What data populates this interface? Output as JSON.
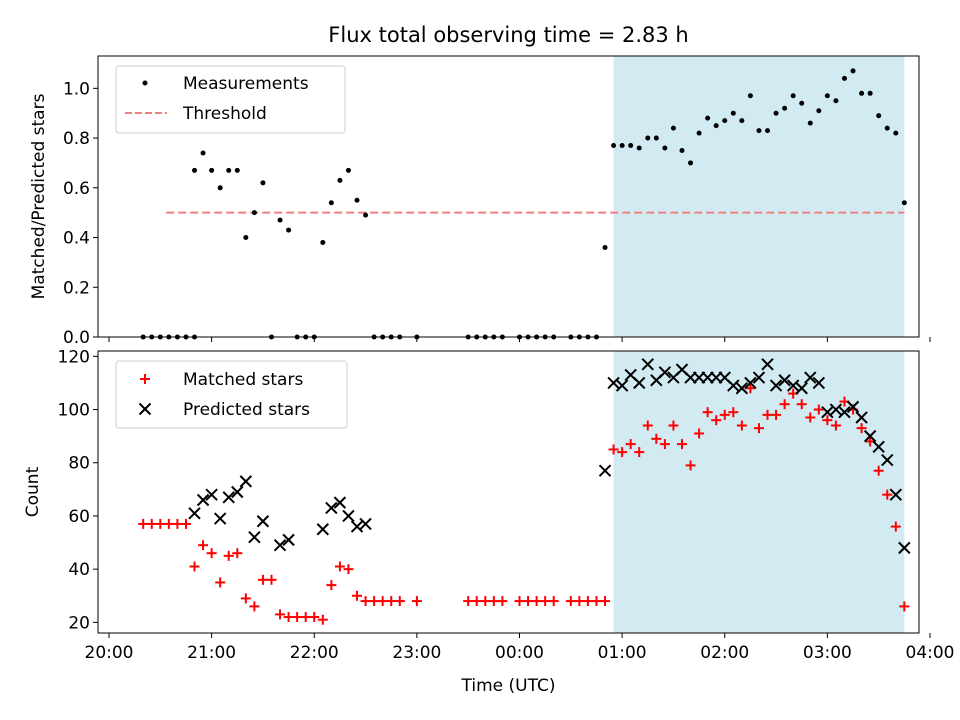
{
  "chart_data": [
    {
      "type": "scatter",
      "title": "Flux total observing time = 2.83 h",
      "xlabel": "",
      "ylabel": "Matched/Predicted stars",
      "xlim": [
        "20:00",
        "04:00"
      ],
      "ylim": [
        0,
        1.13
      ],
      "yticks": [
        0.0,
        0.2,
        0.4,
        0.6,
        0.8,
        1.0
      ],
      "ytick_labels": [
        "0.0",
        "0.2",
        "0.4",
        "0.6",
        "0.8",
        "1.0"
      ],
      "legend": {
        "placement": "upper left",
        "entries": [
          "Measurements",
          "Threshold"
        ]
      },
      "shaded_span": {
        "x": [
          "00:55",
          "03:45"
        ],
        "color": "#add8e6"
      },
      "threshold": {
        "name": "Threshold",
        "value": 0.5,
        "x": [
          "20:20",
          "03:45"
        ],
        "color": "#f08080",
        "style": "dashed"
      },
      "series": [
        {
          "name": "Measurements",
          "marker": "dot",
          "color": "#000000",
          "points": [
            [
              "20:20",
              0
            ],
            [
              "20:25",
              0
            ],
            [
              "20:30",
              0
            ],
            [
              "20:35",
              0
            ],
            [
              "20:40",
              0
            ],
            [
              "20:45",
              0
            ],
            [
              "20:50",
              0
            ],
            [
              "20:50",
              0.67
            ],
            [
              "20:55",
              0.74
            ],
            [
              "21:00",
              0.67
            ],
            [
              "21:05",
              0.6
            ],
            [
              "21:10",
              0.67
            ],
            [
              "21:15",
              0.67
            ],
            [
              "21:20",
              0.4
            ],
            [
              "21:25",
              0.5
            ],
            [
              "21:30",
              0.62
            ],
            [
              "21:35",
              0
            ],
            [
              "21:40",
              0.47
            ],
            [
              "21:45",
              0.43
            ],
            [
              "21:50",
              0
            ],
            [
              "21:55",
              0
            ],
            [
              "22:00",
              0
            ],
            [
              "22:05",
              0.38
            ],
            [
              "22:10",
              0.54
            ],
            [
              "22:15",
              0.63
            ],
            [
              "22:20",
              0.67
            ],
            [
              "22:25",
              0.55
            ],
            [
              "22:30",
              0.49
            ],
            [
              "22:35",
              0
            ],
            [
              "22:40",
              0
            ],
            [
              "22:45",
              0
            ],
            [
              "22:50",
              0
            ],
            [
              "23:00",
              0
            ],
            [
              "23:30",
              0
            ],
            [
              "23:35",
              0
            ],
            [
              "23:40",
              0
            ],
            [
              "23:45",
              0
            ],
            [
              "23:50",
              0
            ],
            [
              "00:00",
              0
            ],
            [
              "00:05",
              0
            ],
            [
              "00:10",
              0
            ],
            [
              "00:15",
              0
            ],
            [
              "00:20",
              0
            ],
            [
              "00:30",
              0
            ],
            [
              "00:35",
              0
            ],
            [
              "00:40",
              0
            ],
            [
              "00:45",
              0
            ],
            [
              "00:50",
              0.36
            ],
            [
              "00:55",
              0.77
            ],
            [
              "01:00",
              0.77
            ],
            [
              "01:05",
              0.77
            ],
            [
              "01:10",
              0.76
            ],
            [
              "01:15",
              0.8
            ],
            [
              "01:20",
              0.8
            ],
            [
              "01:25",
              0.76
            ],
            [
              "01:30",
              0.84
            ],
            [
              "01:35",
              0.75
            ],
            [
              "01:40",
              0.7
            ],
            [
              "01:45",
              0.82
            ],
            [
              "01:50",
              0.88
            ],
            [
              "01:55",
              0.85
            ],
            [
              "02:00",
              0.87
            ],
            [
              "02:05",
              0.9
            ],
            [
              "02:10",
              0.87
            ],
            [
              "02:15",
              0.97
            ],
            [
              "02:20",
              0.83
            ],
            [
              "02:25",
              0.83
            ],
            [
              "02:30",
              0.9
            ],
            [
              "02:35",
              0.92
            ],
            [
              "02:40",
              0.97
            ],
            [
              "02:45",
              0.94
            ],
            [
              "02:50",
              0.86
            ],
            [
              "02:55",
              0.91
            ],
            [
              "03:00",
              0.97
            ],
            [
              "03:05",
              0.95
            ],
            [
              "03:10",
              1.04
            ],
            [
              "03:15",
              1.07
            ],
            [
              "03:20",
              0.98
            ],
            [
              "03:25",
              0.98
            ],
            [
              "03:30",
              0.89
            ],
            [
              "03:35",
              0.84
            ],
            [
              "03:40",
              0.82
            ],
            [
              "03:45",
              0.54
            ]
          ]
        }
      ]
    },
    {
      "type": "scatter",
      "title": "",
      "xlabel": "Time (UTC)",
      "ylabel": "Count",
      "xlim": [
        "20:00",
        "04:00"
      ],
      "xticks": [
        "20:00",
        "21:00",
        "22:00",
        "23:00",
        "00:00",
        "01:00",
        "02:00",
        "03:00",
        "04:00"
      ],
      "ylim": [
        16,
        122
      ],
      "yticks": [
        20,
        40,
        60,
        80,
        100,
        120
      ],
      "ytick_labels": [
        "20",
        "40",
        "60",
        "80",
        "100",
        "120"
      ],
      "legend": {
        "placement": "upper left",
        "entries": [
          "Matched stars",
          "Predicted stars"
        ]
      },
      "shaded_span": {
        "x": [
          "00:55",
          "03:45"
        ],
        "color": "#add8e6"
      },
      "series": [
        {
          "name": "Matched stars",
          "marker": "plus",
          "color": "#ff0000",
          "points": [
            [
              "20:20",
              57
            ],
            [
              "20:25",
              57
            ],
            [
              "20:30",
              57
            ],
            [
              "20:35",
              57
            ],
            [
              "20:40",
              57
            ],
            [
              "20:45",
              57
            ],
            [
              "20:50",
              41
            ],
            [
              "20:55",
              49
            ],
            [
              "21:00",
              46
            ],
            [
              "21:05",
              35
            ],
            [
              "21:10",
              45
            ],
            [
              "21:15",
              46
            ],
            [
              "21:20",
              29
            ],
            [
              "21:25",
              26
            ],
            [
              "21:30",
              36
            ],
            [
              "21:35",
              36
            ],
            [
              "21:40",
              23
            ],
            [
              "21:45",
              22
            ],
            [
              "21:50",
              22
            ],
            [
              "21:55",
              22
            ],
            [
              "22:00",
              22
            ],
            [
              "22:05",
              21
            ],
            [
              "22:10",
              34
            ],
            [
              "22:15",
              41
            ],
            [
              "22:20",
              40
            ],
            [
              "22:25",
              30
            ],
            [
              "22:30",
              28
            ],
            [
              "22:35",
              28
            ],
            [
              "22:40",
              28
            ],
            [
              "22:45",
              28
            ],
            [
              "22:50",
              28
            ],
            [
              "23:00",
              28
            ],
            [
              "23:30",
              28
            ],
            [
              "23:35",
              28
            ],
            [
              "23:40",
              28
            ],
            [
              "23:45",
              28
            ],
            [
              "23:50",
              28
            ],
            [
              "00:00",
              28
            ],
            [
              "00:05",
              28
            ],
            [
              "00:10",
              28
            ],
            [
              "00:15",
              28
            ],
            [
              "00:20",
              28
            ],
            [
              "00:30",
              28
            ],
            [
              "00:35",
              28
            ],
            [
              "00:40",
              28
            ],
            [
              "00:45",
              28
            ],
            [
              "00:50",
              28
            ],
            [
              "00:55",
              85
            ],
            [
              "01:00",
              84
            ],
            [
              "01:05",
              87
            ],
            [
              "01:10",
              84
            ],
            [
              "01:15",
              94
            ],
            [
              "01:20",
              89
            ],
            [
              "01:25",
              87
            ],
            [
              "01:30",
              94
            ],
            [
              "01:35",
              87
            ],
            [
              "01:40",
              79
            ],
            [
              "01:45",
              91
            ],
            [
              "01:50",
              99
            ],
            [
              "01:55",
              96
            ],
            [
              "02:00",
              98
            ],
            [
              "02:05",
              99
            ],
            [
              "02:10",
              94
            ],
            [
              "02:15",
              108
            ],
            [
              "02:20",
              93
            ],
            [
              "02:25",
              98
            ],
            [
              "02:30",
              98
            ],
            [
              "02:35",
              102
            ],
            [
              "02:40",
              106
            ],
            [
              "02:45",
              102
            ],
            [
              "02:50",
              97
            ],
            [
              "02:55",
              100
            ],
            [
              "03:00",
              96
            ],
            [
              "03:05",
              94
            ],
            [
              "03:10",
              103
            ],
            [
              "03:15",
              100
            ],
            [
              "03:20",
              93
            ],
            [
              "03:25",
              88
            ],
            [
              "03:30",
              77
            ],
            [
              "03:35",
              68
            ],
            [
              "03:40",
              56
            ],
            [
              "03:45",
              26
            ]
          ]
        },
        {
          "name": "Predicted stars",
          "marker": "x",
          "color": "#000000",
          "points": [
            [
              "20:50",
              61
            ],
            [
              "20:55",
              66
            ],
            [
              "21:00",
              68
            ],
            [
              "21:05",
              59
            ],
            [
              "21:10",
              67
            ],
            [
              "21:15",
              69
            ],
            [
              "21:20",
              73
            ],
            [
              "21:25",
              52
            ],
            [
              "21:30",
              58
            ],
            [
              "21:40",
              49
            ],
            [
              "21:45",
              51
            ],
            [
              "22:05",
              55
            ],
            [
              "22:10",
              63
            ],
            [
              "22:15",
              65
            ],
            [
              "22:20",
              60
            ],
            [
              "22:25",
              56
            ],
            [
              "22:30",
              57
            ],
            [
              "00:50",
              77
            ],
            [
              "00:55",
              110
            ],
            [
              "01:00",
              109
            ],
            [
              "01:05",
              113
            ],
            [
              "01:10",
              110
            ],
            [
              "01:15",
              117
            ],
            [
              "01:20",
              111
            ],
            [
              "01:25",
              114
            ],
            [
              "01:30",
              112
            ],
            [
              "01:35",
              115
            ],
            [
              "01:40",
              112
            ],
            [
              "01:45",
              112
            ],
            [
              "01:50",
              112
            ],
            [
              "01:55",
              112
            ],
            [
              "02:00",
              112
            ],
            [
              "02:05",
              109
            ],
            [
              "02:10",
              108
            ],
            [
              "02:15",
              110
            ],
            [
              "02:20",
              112
            ],
            [
              "02:25",
              117
            ],
            [
              "02:30",
              109
            ],
            [
              "02:35",
              111
            ],
            [
              "02:40",
              109
            ],
            [
              "02:45",
              108
            ],
            [
              "02:50",
              112
            ],
            [
              "02:55",
              110
            ],
            [
              "03:00",
              99
            ],
            [
              "03:05",
              100
            ],
            [
              "03:10",
              99
            ],
            [
              "03:15",
              101
            ],
            [
              "03:20",
              97
            ],
            [
              "03:25",
              90
            ],
            [
              "03:30",
              86
            ],
            [
              "03:35",
              81
            ],
            [
              "03:40",
              68
            ],
            [
              "03:45",
              48
            ]
          ]
        }
      ]
    }
  ]
}
